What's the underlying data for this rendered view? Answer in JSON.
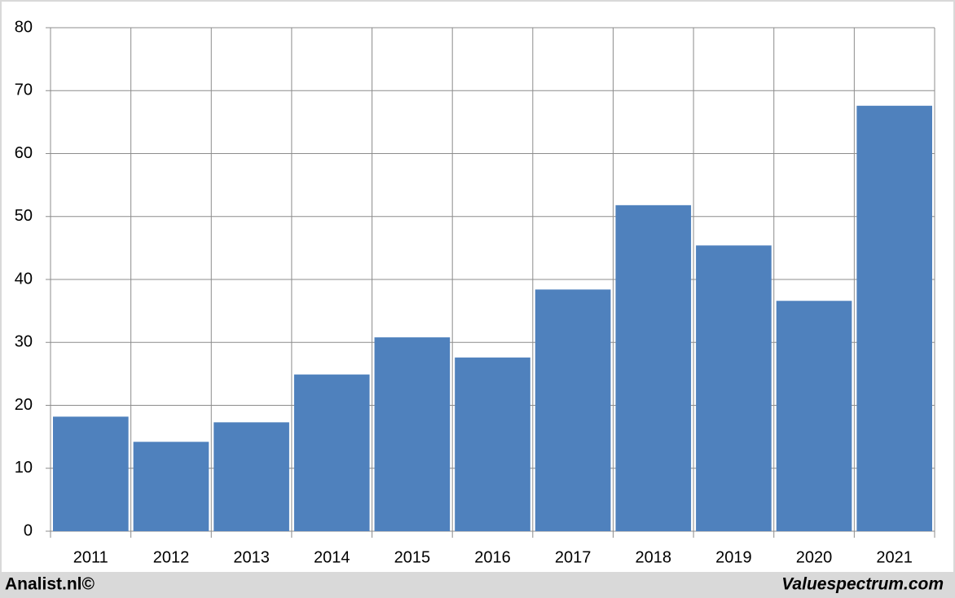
{
  "chart_data": {
    "type": "bar",
    "categories": [
      "2011",
      "2012",
      "2013",
      "2014",
      "2015",
      "2016",
      "2017",
      "2018",
      "2019",
      "2020",
      "2021"
    ],
    "values": [
      18.2,
      14.2,
      17.3,
      24.9,
      30.8,
      27.6,
      38.4,
      51.8,
      45.4,
      36.6,
      67.6
    ],
    "color": "#4f81bd",
    "ylim": [
      0,
      80
    ],
    "yticks": [
      0,
      10,
      20,
      30,
      40,
      50,
      60,
      70,
      80
    ],
    "grid": true
  },
  "footer": {
    "left": "Analist.nl©",
    "right": "Valuespectrum.com"
  }
}
